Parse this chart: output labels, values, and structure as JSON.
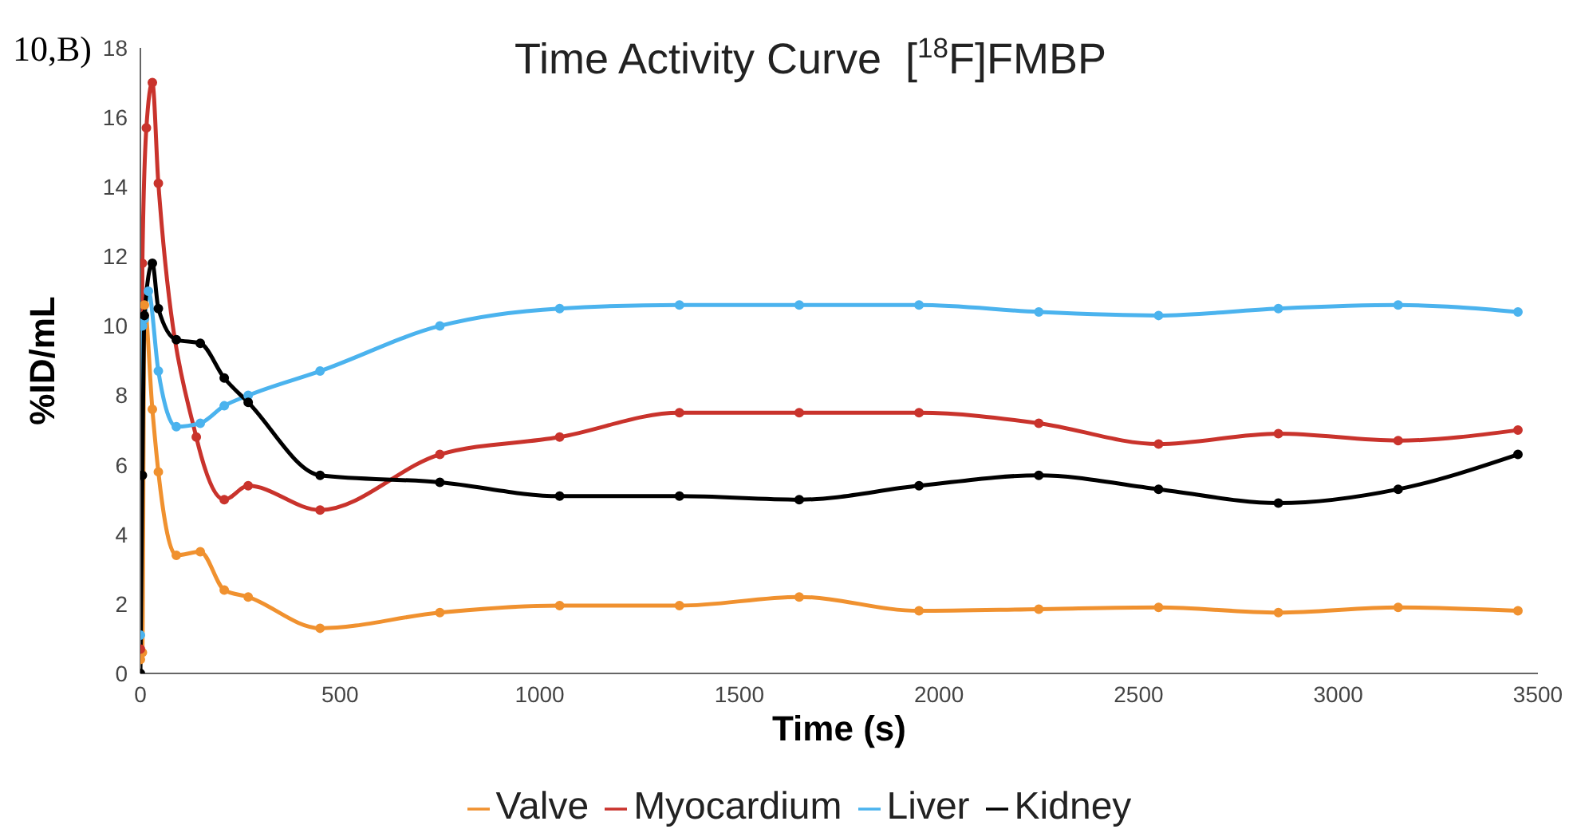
{
  "chart_data": {
    "type": "line",
    "title": "Time Activity Curve  [$^{18}$F]FMBP",
    "xlabel": "Time (s)",
    "ylabel": "%ID/mL",
    "annotations": [
      "10,B)"
    ],
    "xlim": [
      0,
      3500
    ],
    "xticks": [
      0,
      500,
      1000,
      1500,
      2000,
      2500,
      3000,
      3500
    ],
    "ylim": [
      0,
      18
    ],
    "yticks": [
      0,
      2,
      4,
      6,
      8,
      10,
      12,
      14,
      16,
      18
    ],
    "grid": false,
    "legend": "bottom",
    "marker": "circle",
    "line_style": "solid",
    "series": [
      {
        "name": "Valve",
        "color": "#f0912f",
        "x": [
          0,
          5,
          10,
          30,
          45,
          90,
          150,
          210,
          270,
          450,
          750,
          1050,
          1350,
          1650,
          1950,
          2250,
          2550,
          2850,
          3150,
          3450
        ],
        "values": [
          0.4,
          0.6,
          10.6,
          7.6,
          5.8,
          3.4,
          3.5,
          2.4,
          2.2,
          1.3,
          1.75,
          1.95,
          1.95,
          2.2,
          1.8,
          1.85,
          1.9,
          1.75,
          1.9,
          1.8
        ]
      },
      {
        "name": "Myocardium",
        "color": "#c9332c",
        "x": [
          0,
          5,
          15,
          30,
          45,
          140,
          210,
          270,
          450,
          750,
          1050,
          1350,
          1650,
          1950,
          2250,
          2550,
          2850,
          3150,
          3450
        ],
        "values": [
          0.7,
          11.8,
          15.7,
          17.0,
          14.1,
          6.8,
          5.0,
          5.4,
          4.7,
          6.3,
          6.8,
          7.5,
          7.5,
          7.5,
          7.2,
          6.6,
          6.9,
          6.7,
          7.0
        ]
      },
      {
        "name": "Liver",
        "color": "#4bb3ee",
        "x": [
          0,
          5,
          10,
          20,
          45,
          90,
          150,
          210,
          270,
          450,
          750,
          1050,
          1350,
          1650,
          1950,
          2250,
          2550,
          2850,
          3150,
          3450
        ],
        "values": [
          1.1,
          10.0,
          10.2,
          11.0,
          8.7,
          7.1,
          7.2,
          7.7,
          8.0,
          8.7,
          10.0,
          10.5,
          10.6,
          10.6,
          10.6,
          10.4,
          10.3,
          10.5,
          10.6,
          10.4
        ]
      },
      {
        "name": "Kidney",
        "color": "#000000",
        "x": [
          0,
          5,
          10,
          30,
          45,
          90,
          150,
          210,
          270,
          450,
          750,
          1050,
          1350,
          1650,
          1950,
          2250,
          2550,
          2850,
          3150,
          3450
        ],
        "values": [
          0,
          5.7,
          10.3,
          11.8,
          10.5,
          9.6,
          9.5,
          8.5,
          7.8,
          5.7,
          5.5,
          5.1,
          5.1,
          5.0,
          5.4,
          5.7,
          5.3,
          4.9,
          5.3,
          6.3
        ]
      }
    ]
  }
}
